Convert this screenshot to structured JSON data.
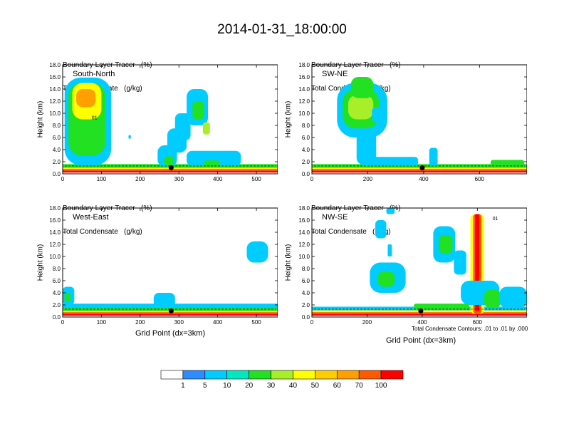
{
  "title": "2014-01-31_18:00:00",
  "colors": {
    "scale": [
      "#ffffff",
      "#2f8cff",
      "#00ccff",
      "#00e8c0",
      "#22e022",
      "#a8ef2a",
      "#ffff00",
      "#ffcc00",
      "#ffa000",
      "#ff5a00",
      "#ff0000"
    ]
  },
  "colorbar": {
    "labels": [
      "1",
      "5",
      "10",
      "20",
      "30",
      "40",
      "50",
      "60",
      "70",
      "100"
    ]
  },
  "panels": [
    {
      "header1": "Boundary Layer Tracer   (%)",
      "header2": "Total Condensate   (g/kg)",
      "label": "South-North",
      "ylabel": "Height (km)",
      "xlabel": "",
      "contour_label": "01",
      "contour_note": ""
    },
    {
      "header1": "Boundary Layer Tracer   (%)",
      "header2": "Total Condensate   (g/kg)",
      "label": "SW-NE",
      "ylabel": "Height (km)",
      "xlabel": "",
      "contour_label": "",
      "contour_note": ""
    },
    {
      "header1": "Boundary Layer Tracer   (%)",
      "header2": "Total Condensate   (g/kg)",
      "label": "West-East",
      "ylabel": "Height (km)",
      "xlabel": "Grid Point (dx=3km)",
      "contour_label": "",
      "contour_note": ""
    },
    {
      "header1": "Boundary Layer Tracer   (%)",
      "header2": "Total Condensate   (g/kg)",
      "label": "NW-SE",
      "ylabel": "Height (km)",
      "xlabel": "Grid Point (dx=3km)",
      "contour_label": "01",
      "contour_note": "Total Condensate Contours: .01 to .01 by .000"
    }
  ],
  "chart_data": [
    {
      "type": "heatmap",
      "name": "South-North",
      "x_ticks": [
        0,
        100,
        200,
        300,
        400,
        500
      ],
      "xlim": [
        0,
        555
      ],
      "y_ticks": [
        "0.0",
        "2.0",
        "4.0",
        "6.0",
        "8.0",
        "10.0",
        "12.0",
        "14.0",
        "16.0",
        "18.0"
      ],
      "ylim": [
        0,
        18
      ],
      "marker": {
        "x": 280,
        "y": 1.0
      },
      "blobs": [
        {
          "x": 0,
          "y": 0.2,
          "w": 555,
          "h": 0.4,
          "v": 100
        },
        {
          "x": 0,
          "y": 0.5,
          "w": 555,
          "h": 0.4,
          "v": 70
        },
        {
          "x": 0,
          "y": 0.8,
          "w": 555,
          "h": 0.3,
          "v": 40
        },
        {
          "x": 0,
          "y": 1.0,
          "w": 555,
          "h": 0.6,
          "v": 20
        },
        {
          "x": 5,
          "y": 1.4,
          "w": 120,
          "h": 14.5,
          "v": 5
        },
        {
          "x": 15,
          "y": 3.0,
          "w": 95,
          "h": 12.0,
          "v": 20
        },
        {
          "x": 25,
          "y": 9.0,
          "w": 75,
          "h": 6.0,
          "v": 40
        },
        {
          "x": 35,
          "y": 11.0,
          "w": 50,
          "h": 3.0,
          "v": 60
        },
        {
          "x": 245,
          "y": 1.2,
          "w": 50,
          "h": 3.5,
          "v": 5
        },
        {
          "x": 262,
          "y": 1.4,
          "w": 25,
          "h": 1.5,
          "v": 20
        },
        {
          "x": 270,
          "y": 3.5,
          "w": 50,
          "h": 4.0,
          "v": 5
        },
        {
          "x": 290,
          "y": 5.5,
          "w": 40,
          "h": 4.5,
          "v": 5
        },
        {
          "x": 320,
          "y": 8.0,
          "w": 55,
          "h": 6.0,
          "v": 5
        },
        {
          "x": 335,
          "y": 9.0,
          "w": 30,
          "h": 3.0,
          "v": 20
        },
        {
          "x": 362,
          "y": 6.5,
          "w": 18,
          "h": 2.0,
          "v": 30
        },
        {
          "x": 320,
          "y": 1.3,
          "w": 140,
          "h": 2.5,
          "v": 5
        },
        {
          "x": 365,
          "y": 1.2,
          "w": 40,
          "h": 1.0,
          "v": 20
        },
        {
          "x": 170,
          "y": 5.8,
          "w": 6,
          "h": 0.6,
          "v": 5
        }
      ]
    },
    {
      "type": "heatmap",
      "name": "SW-NE",
      "x_ticks": [
        0,
        200,
        400,
        600
      ],
      "xlim": [
        0,
        770
      ],
      "y_ticks": [
        "0.0",
        "2.0",
        "4.0",
        "6.0",
        "8.0",
        "10.0",
        "12.0",
        "14.0",
        "16.0",
        "18.0"
      ],
      "ylim": [
        0,
        18
      ],
      "marker": {
        "x": 395,
        "y": 1.0
      },
      "blobs": [
        {
          "x": 0,
          "y": 0.2,
          "w": 770,
          "h": 0.4,
          "v": 100
        },
        {
          "x": 0,
          "y": 0.5,
          "w": 770,
          "h": 0.4,
          "v": 70
        },
        {
          "x": 0,
          "y": 0.8,
          "w": 770,
          "h": 0.3,
          "v": 40
        },
        {
          "x": 0,
          "y": 1.0,
          "w": 770,
          "h": 0.6,
          "v": 20
        },
        {
          "x": 90,
          "y": 6.0,
          "w": 180,
          "h": 9.0,
          "v": 5
        },
        {
          "x": 110,
          "y": 7.5,
          "w": 130,
          "h": 6.5,
          "v": 20
        },
        {
          "x": 130,
          "y": 9.0,
          "w": 90,
          "h": 4.0,
          "v": 30
        },
        {
          "x": 140,
          "y": 12.5,
          "w": 80,
          "h": 3.5,
          "v": 20
        },
        {
          "x": 160,
          "y": 1.5,
          "w": 70,
          "h": 5.5,
          "v": 5
        },
        {
          "x": 215,
          "y": 8.5,
          "w": 40,
          "h": 2.5,
          "v": 5
        },
        {
          "x": 180,
          "y": 1.3,
          "w": 200,
          "h": 1.5,
          "v": 5
        },
        {
          "x": 420,
          "y": 1.3,
          "w": 30,
          "h": 3.0,
          "v": 5
        },
        {
          "x": 640,
          "y": 1.3,
          "w": 120,
          "h": 1.0,
          "v": 20
        }
      ]
    },
    {
      "type": "heatmap",
      "name": "West-East",
      "x_ticks": [
        0,
        100,
        200,
        300,
        400,
        500
      ],
      "xlim": [
        0,
        555
      ],
      "y_ticks": [
        "0.0",
        "2.0",
        "4.0",
        "6.0",
        "8.0",
        "10.0",
        "12.0",
        "14.0",
        "16.0",
        "18.0"
      ],
      "ylim": [
        0,
        18
      ],
      "marker": {
        "x": 280,
        "y": 1.0
      },
      "blobs": [
        {
          "x": 0,
          "y": 0.2,
          "w": 555,
          "h": 0.4,
          "v": 100
        },
        {
          "x": 0,
          "y": 0.5,
          "w": 555,
          "h": 0.4,
          "v": 70
        },
        {
          "x": 0,
          "y": 0.8,
          "w": 555,
          "h": 0.3,
          "v": 40
        },
        {
          "x": 0,
          "y": 1.0,
          "w": 555,
          "h": 0.8,
          "v": 20
        },
        {
          "x": 0,
          "y": 1.5,
          "w": 555,
          "h": 0.7,
          "v": 5
        },
        {
          "x": 0,
          "y": 2.0,
          "w": 30,
          "h": 3.0,
          "v": 5
        },
        {
          "x": 5,
          "y": 2.5,
          "w": 15,
          "h": 1.5,
          "v": 20
        },
        {
          "x": 235,
          "y": 1.5,
          "w": 55,
          "h": 2.5,
          "v": 5
        },
        {
          "x": 475,
          "y": 9.0,
          "w": 55,
          "h": 3.5,
          "v": 5
        }
      ]
    },
    {
      "type": "heatmap",
      "name": "NW-SE",
      "x_ticks": [
        0,
        200,
        400,
        600
      ],
      "xlim": [
        0,
        780
      ],
      "y_ticks": [
        "0.0",
        "2.0",
        "4.0",
        "6.0",
        "8.0",
        "10.0",
        "12.0",
        "14.0",
        "16.0",
        "18.0"
      ],
      "ylim": [
        0,
        18
      ],
      "marker": {
        "x": 395,
        "y": 1.0
      },
      "blobs": [
        {
          "x": 0,
          "y": 0.2,
          "w": 780,
          "h": 0.4,
          "v": 100
        },
        {
          "x": 0,
          "y": 0.5,
          "w": 780,
          "h": 0.4,
          "v": 70
        },
        {
          "x": 0,
          "y": 0.8,
          "w": 780,
          "h": 0.4,
          "v": 40
        },
        {
          "x": 0,
          "y": 1.1,
          "w": 780,
          "h": 0.6,
          "v": 5
        },
        {
          "x": 575,
          "y": 0.5,
          "w": 50,
          "h": 16.5,
          "v": 40
        },
        {
          "x": 585,
          "y": 0.5,
          "w": 30,
          "h": 16.5,
          "v": 70
        },
        {
          "x": 592,
          "y": 1.0,
          "w": 15,
          "h": 16.0,
          "v": 100
        },
        {
          "x": 540,
          "y": 2.0,
          "w": 140,
          "h": 4.0,
          "v": 5
        },
        {
          "x": 625,
          "y": 1.5,
          "w": 60,
          "h": 3.0,
          "v": 20
        },
        {
          "x": 680,
          "y": 1.5,
          "w": 100,
          "h": 3.5,
          "v": 5
        },
        {
          "x": 440,
          "y": 9.0,
          "w": 80,
          "h": 6.0,
          "v": 5
        },
        {
          "x": 460,
          "y": 10.5,
          "w": 50,
          "h": 3.0,
          "v": 20
        },
        {
          "x": 515,
          "y": 7.0,
          "w": 45,
          "h": 4.0,
          "v": 5
        },
        {
          "x": 210,
          "y": 4.0,
          "w": 130,
          "h": 5.0,
          "v": 5
        },
        {
          "x": 240,
          "y": 5.0,
          "w": 60,
          "h": 2.5,
          "v": 20
        },
        {
          "x": 230,
          "y": 13.0,
          "w": 40,
          "h": 3.0,
          "v": 5
        },
        {
          "x": 270,
          "y": 17.0,
          "w": 30,
          "h": 1.0,
          "v": 5
        },
        {
          "x": 275,
          "y": 10.0,
          "w": 15,
          "h": 2.0,
          "v": 5
        },
        {
          "x": 370,
          "y": 1.2,
          "w": 200,
          "h": 1.0,
          "v": 20
        },
        {
          "x": 730,
          "y": 2.0,
          "w": 50,
          "h": 1.5,
          "v": 5
        }
      ]
    }
  ]
}
